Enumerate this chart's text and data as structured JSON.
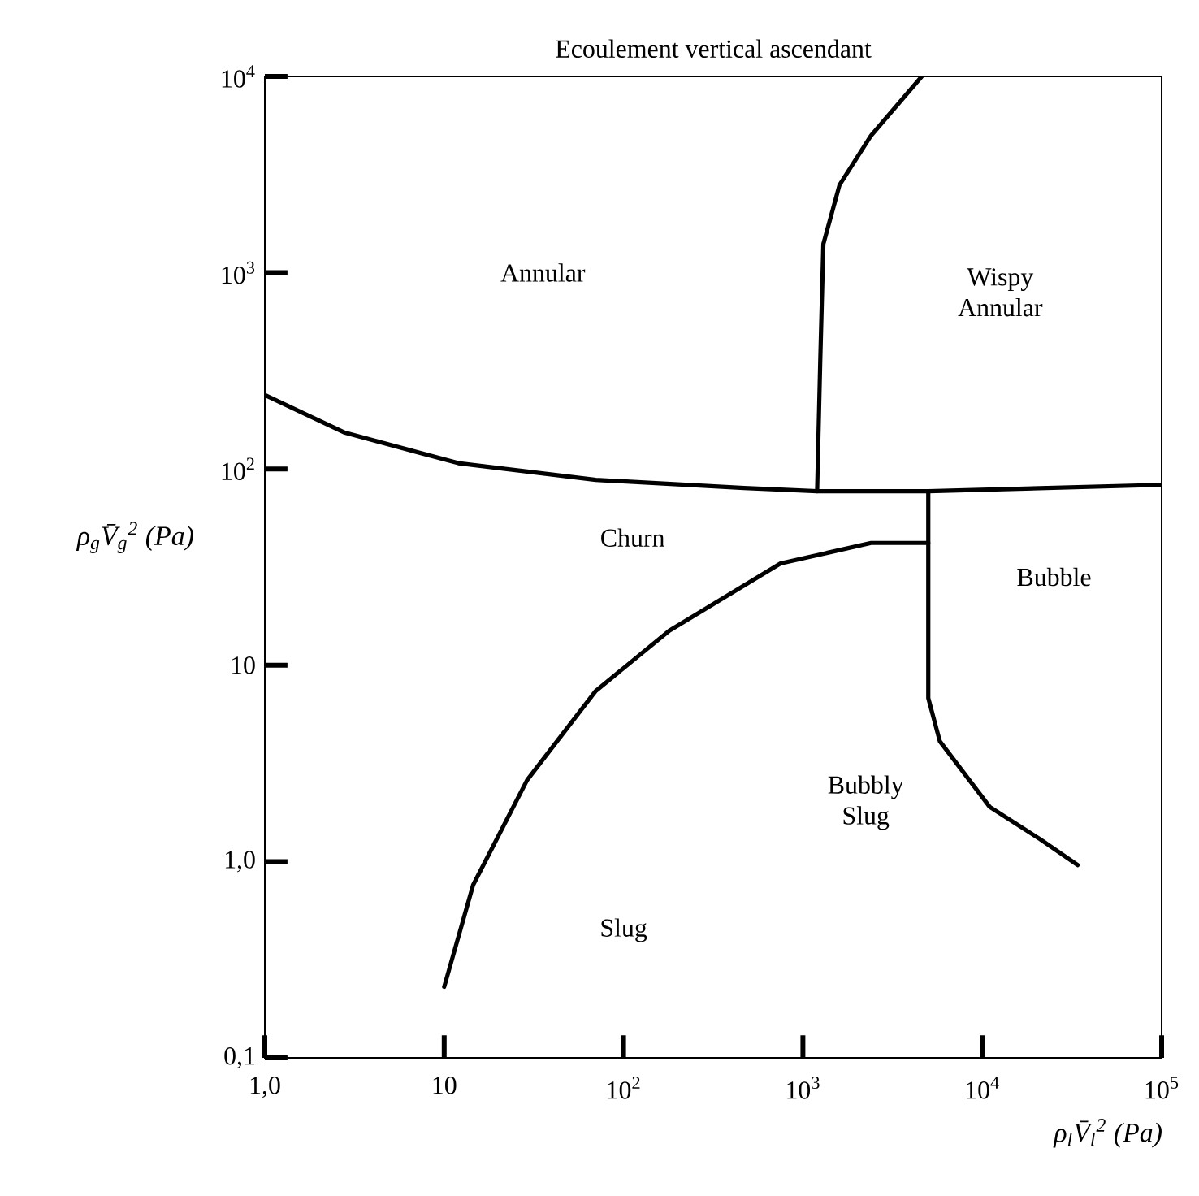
{
  "chart_data": {
    "type": "line",
    "title": "Ecoulement vertical ascendant",
    "xlabel": "ρ$_{l}$V̄$_{l}$$^{2}$ (Pa)",
    "ylabel": "ρ$_{g}$V̄$_{g}$$^{2}$ (Pa)",
    "log": "xy",
    "xlim": [
      1,
      100000
    ],
    "ylim": [
      0.1,
      10000
    ],
    "xticks": [
      {
        "value": 1,
        "label": "1,0"
      },
      {
        "value": 10,
        "label": "10"
      },
      {
        "value": 100,
        "label": "10$^{2}$"
      },
      {
        "value": 1000,
        "label": "10$^{3}$"
      },
      {
        "value": 10000,
        "label": "10$^{4}$"
      },
      {
        "value": 100000,
        "label": "10$^{5}$"
      }
    ],
    "yticks": [
      {
        "value": 0.1,
        "label": "0,1"
      },
      {
        "value": 1,
        "label": "1,0"
      },
      {
        "value": 10,
        "label": "10"
      },
      {
        "value": 100,
        "label": "10$^{2}$"
      },
      {
        "value": 1000,
        "label": "10$^{3}$"
      },
      {
        "value": 10000,
        "label": "10$^{4}$"
      }
    ],
    "series": [
      {
        "color": "#000000",
        "x": [
          1,
          2.8,
          12,
          70,
          470,
          1200,
          5000,
          100000
        ],
        "values": [
          238,
          153,
          107,
          88,
          80,
          77,
          77,
          83
        ]
      },
      {
        "color": "#000000",
        "x": [
          1200,
          1250,
          1300,
          1600,
          2400,
          4600
        ],
        "values": [
          77,
          363,
          1400,
          2800,
          5000,
          10000
        ]
      },
      {
        "color": "#000000",
        "x": [
          5000,
          5000,
          5800,
          11000,
          21000,
          34000
        ],
        "values": [
          77,
          6.8,
          4.1,
          1.9,
          1.3,
          0.96
        ]
      },
      {
        "color": "#000000",
        "x": [
          5000,
          2400,
          750,
          180,
          70,
          29,
          14.5,
          10
        ],
        "values": [
          42,
          42,
          33,
          15,
          7.4,
          2.6,
          0.76,
          0.23
        ]
      }
    ],
    "annotations": [
      "Annular",
      "Wispy Annular",
      "Churn",
      "Bubble",
      "Bubbly Slug",
      "Slug"
    ]
  }
}
